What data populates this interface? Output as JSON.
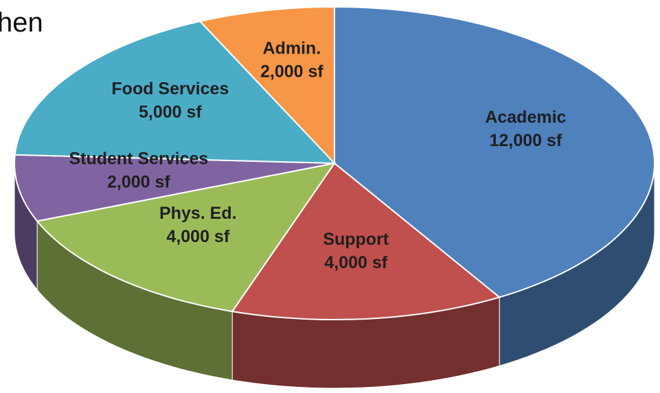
{
  "chart_data": {
    "type": "pie3d",
    "annotation": "hen",
    "categories": [
      "Academic",
      "Support",
      "Phys. Ed.",
      "Student Services",
      "Food Services",
      "Admin."
    ],
    "values": [
      12000,
      4000,
      4000,
      2000,
      5000,
      2000
    ],
    "value_labels": [
      "12,000 sf",
      "4,000 sf",
      "4,000 sf",
      "2,000 sf",
      "5,000 sf",
      "2,000 sf"
    ],
    "colors": [
      "#4f81bd",
      "#c0504d",
      "#9bbb59",
      "#8064a2",
      "#4bacc6",
      "#f79646"
    ]
  }
}
